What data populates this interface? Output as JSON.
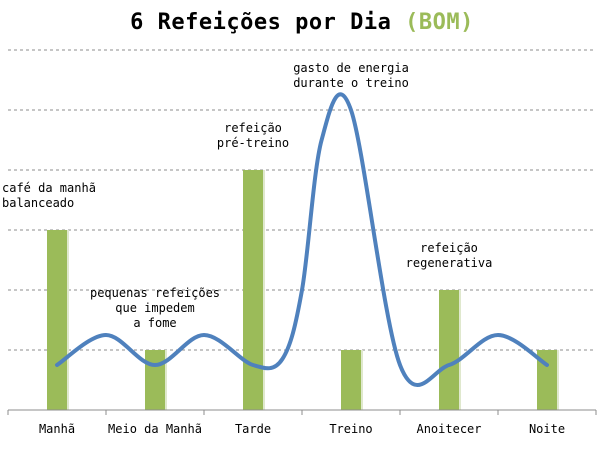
{
  "chart_data": {
    "type": "bar",
    "title": "6 Refeições por Dia",
    "title_suffix": "(BOM)",
    "categories": [
      "Manhã",
      "Meio da Manhã",
      "Tarde",
      "Treino",
      "Anoitecer",
      "Noite"
    ],
    "values": [
      3,
      1,
      4,
      1,
      2,
      1
    ],
    "ylim": [
      0,
      6
    ],
    "grid": true,
    "grid_style": "dashed",
    "bar_color": "#9bbb59",
    "line_color": "#4f81bd",
    "line_series": {
      "x": [
        0,
        0.5,
        1,
        1.5,
        2,
        2.3,
        2.5,
        2.7,
        3,
        3.5,
        4,
        4.5,
        5
      ],
      "y": [
        0.75,
        1.25,
        0.75,
        1.25,
        0.75,
        0.85,
        2.0,
        4.5,
        5.0,
        0.75,
        0.75,
        1.25,
        0.75
      ]
    },
    "annotations": [
      {
        "lines": [
          "café da manhã",
          "balanceado"
        ],
        "x": 0,
        "y": 3.25,
        "anchor": "start"
      },
      {
        "lines": [
          "pequenas refeições",
          "que impedem",
          "a fome"
        ],
        "x": 1,
        "y": 1.25,
        "anchor": "middle"
      },
      {
        "lines": [
          "refeição",
          "pré-treino"
        ],
        "x": 2,
        "y": 4.25,
        "anchor": "middle"
      },
      {
        "lines": [
          "gasto de energia",
          "durante o treino"
        ],
        "x": 3,
        "y": 5.25,
        "anchor": "middle"
      },
      {
        "lines": [
          "refeição",
          "regenerativa"
        ],
        "x": 4,
        "y": 2.25,
        "anchor": "middle"
      }
    ]
  }
}
